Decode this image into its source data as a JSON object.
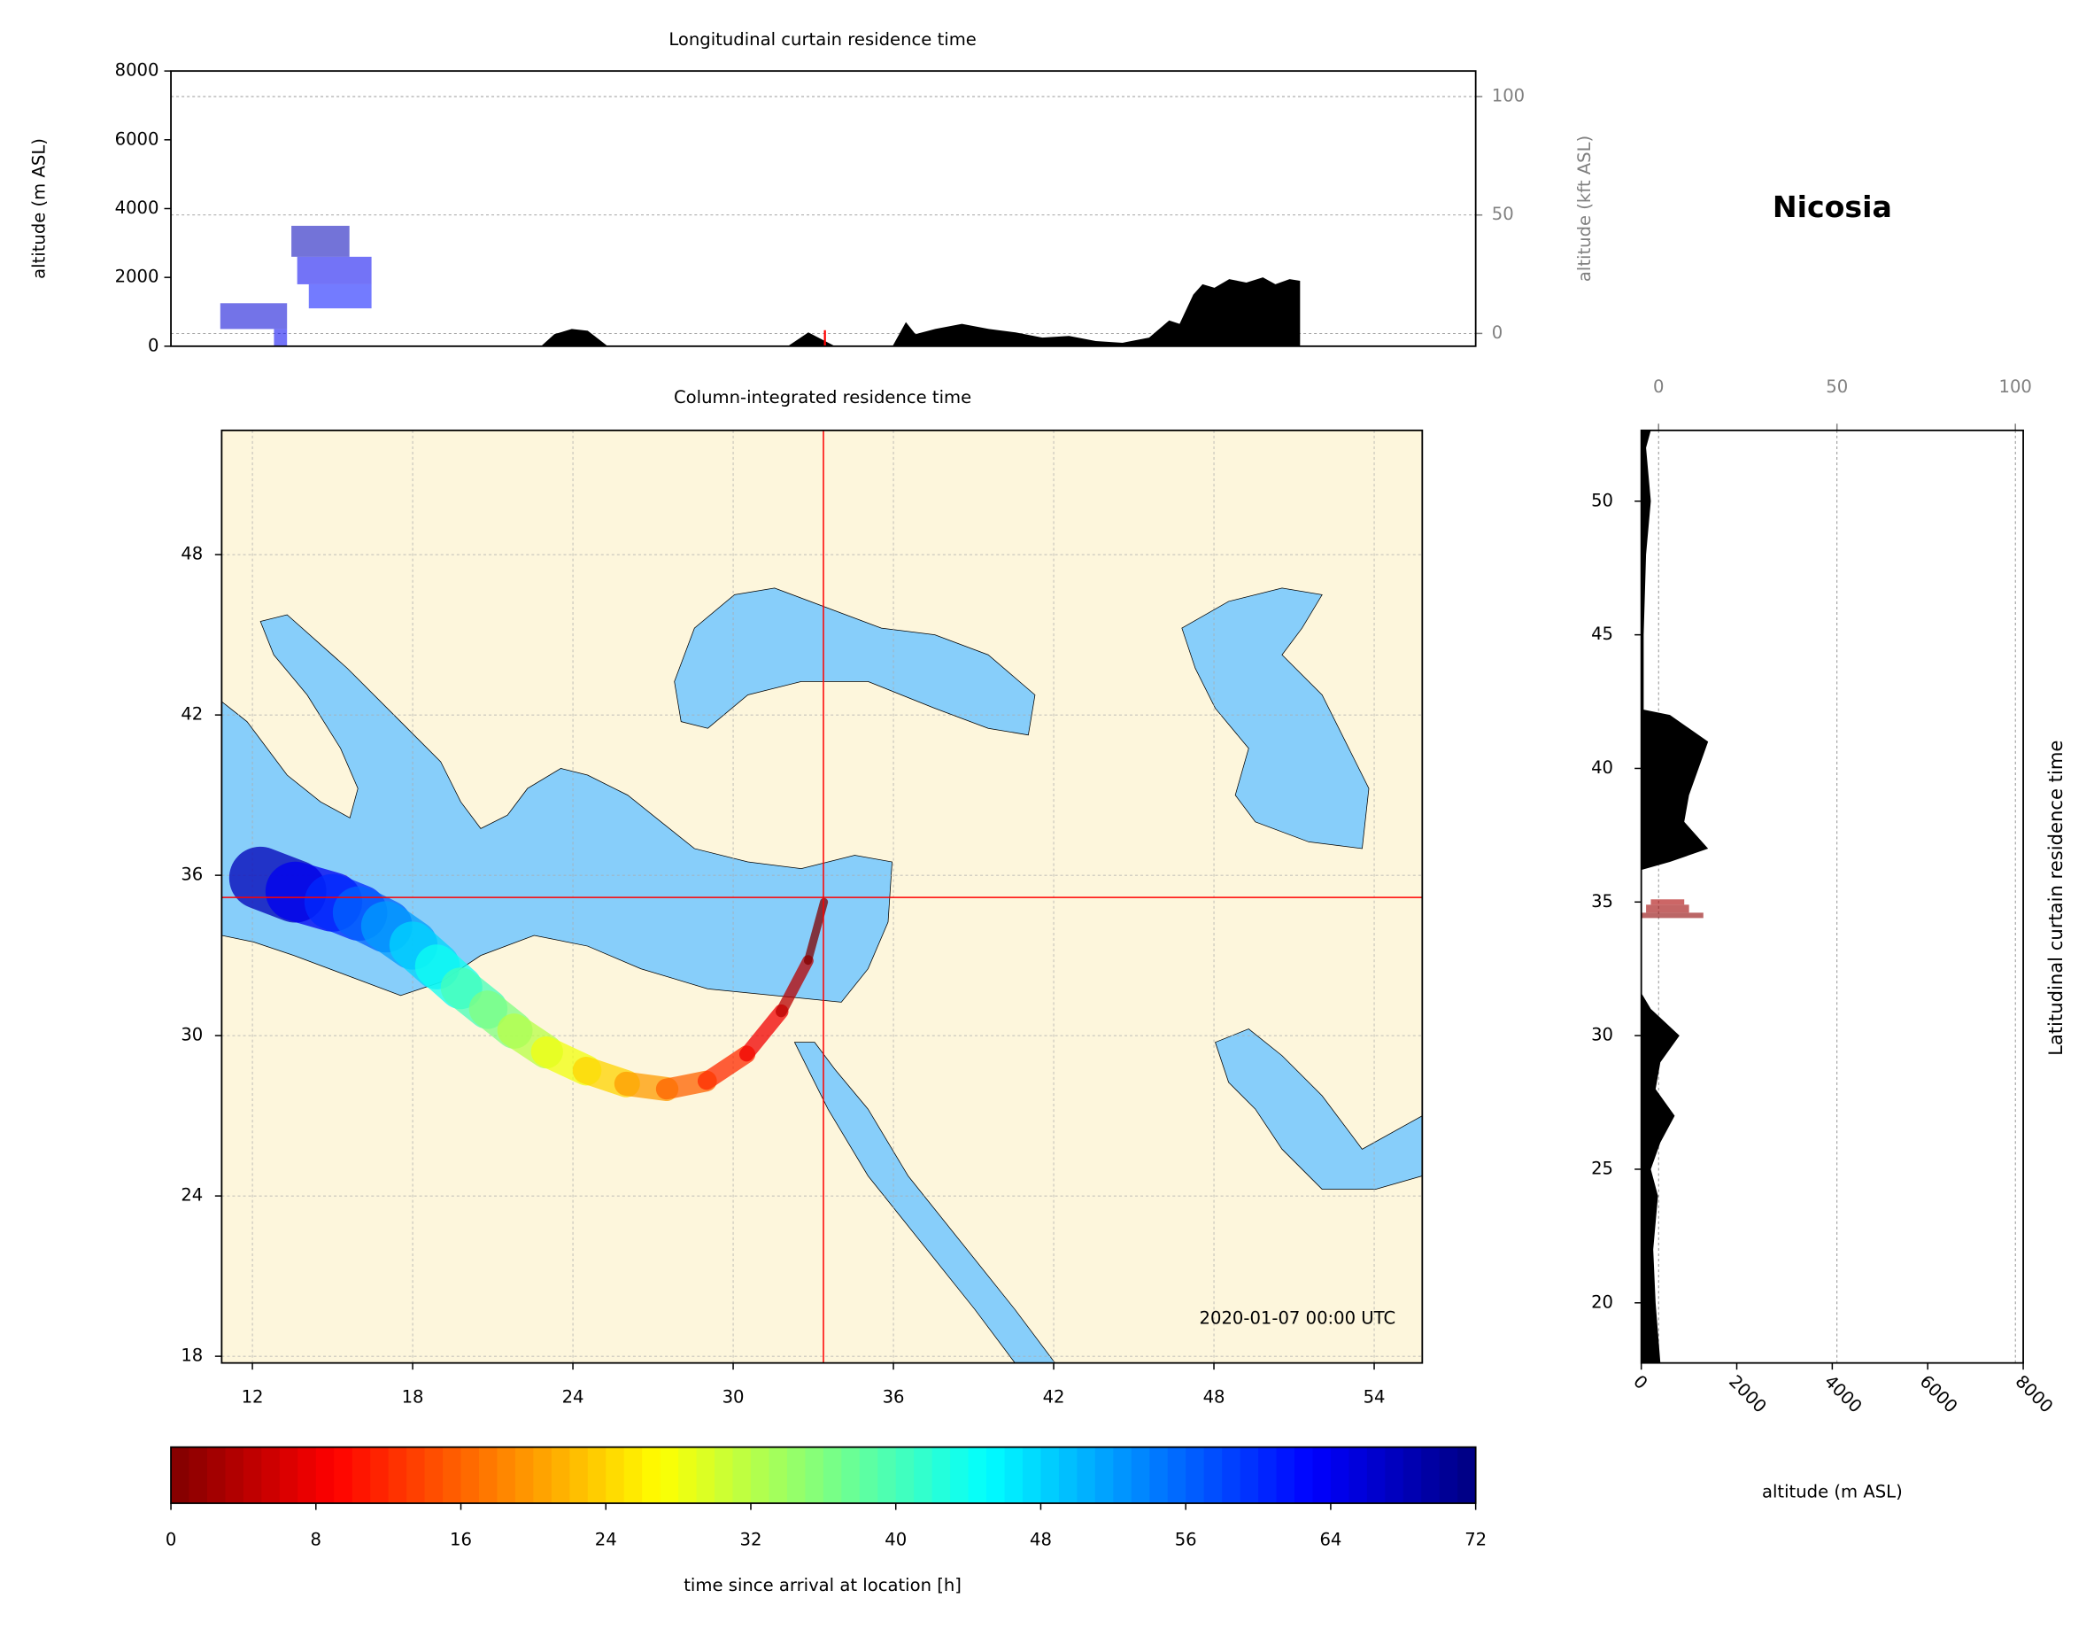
{
  "chart_data": [
    {
      "type": "area",
      "title": "Longitudinal curtain residence time",
      "ylabel": "altitude (m ASL)",
      "y2label": "altitude (kft ASL)",
      "xlim": [
        10.85,
        55.8
      ],
      "ylim": [
        0,
        8000
      ],
      "yticks": [
        0,
        2000,
        4000,
        6000,
        8000
      ],
      "y2lim": [
        -5.4,
        110.8
      ],
      "y2ticks": [
        0,
        50,
        100
      ],
      "terrain": {
        "color": "#000000",
        "x": [
          23.6,
          24.06,
          24.66,
          25.21,
          25.9,
          32.1,
          32.81,
          33.73,
          35.71,
          36.17,
          36.5,
          37.18,
          38.1,
          39.03,
          39.95,
          40.87,
          41.79,
          42.71,
          43.63,
          44.55,
          45.24,
          45.6,
          46.07,
          46.39,
          46.8,
          47.31,
          47.9,
          48.47,
          48.9,
          49.39,
          49.75
        ],
        "values": [
          0,
          350,
          500,
          450,
          0,
          0,
          400,
          0,
          0,
          700,
          350,
          500,
          650,
          500,
          400,
          250,
          300,
          150,
          100,
          250,
          750,
          650,
          1500,
          1800,
          1700,
          1950,
          1850,
          2000,
          1800,
          1950,
          1900
        ]
      },
      "cells": [
        {
          "x": [
            12.55,
            14.85
          ],
          "y": [
            500,
            1250
          ],
          "hours": 66
        },
        {
          "x": [
            14.4,
            14.85
          ],
          "y": [
            0,
            500
          ],
          "hours": 64
        },
        {
          "x": [
            15.0,
            17.0
          ],
          "y": [
            2600,
            3500
          ],
          "hours": 68
        },
        {
          "x": [
            15.2,
            17.76
          ],
          "y": [
            1800,
            2600
          ],
          "hours": 64
        },
        {
          "x": [
            15.6,
            17.76
          ],
          "y": [
            1100,
            1800
          ],
          "hours": 62
        }
      ]
    },
    {
      "type": "map",
      "title": "Column-integrated residence time",
      "annotation": "2020-01-07 00:00 UTC",
      "xlim": [
        10.85,
        55.8
      ],
      "ylim": [
        17.75,
        52.65
      ],
      "xticks": [
        12,
        18,
        24,
        30,
        36,
        42,
        48,
        54
      ],
      "yticks": [
        18,
        24,
        30,
        36,
        42,
        48
      ],
      "grid": true,
      "land_color": "#fdf6dc",
      "sea_color": "#87cefa",
      "station": {
        "lon": 33.38,
        "lat": 35.17,
        "color": "#ff0000"
      },
      "trajectory": {
        "lon": [
          33.4,
          32.8,
          31.8,
          30.5,
          29.0,
          27.5,
          26.0,
          24.5,
          23.0,
          21.8,
          20.8,
          19.8,
          18.9,
          18.0,
          17.0,
          16.0,
          15.0,
          13.6,
          12.3
        ],
        "lat": [
          35.0,
          32.8,
          30.9,
          29.3,
          28.3,
          28.0,
          28.2,
          28.7,
          29.4,
          30.2,
          31.0,
          31.8,
          32.6,
          33.4,
          34.1,
          34.6,
          35.0,
          35.4,
          35.9
        ],
        "hours": [
          0,
          4,
          8,
          12,
          16,
          20,
          24,
          28,
          32,
          36,
          40,
          44,
          48,
          52,
          56,
          60,
          64,
          68,
          72
        ]
      }
    },
    {
      "type": "colorbar",
      "xlabel": "time since arrival at location [h]",
      "colormap": "jet_r",
      "xlim": [
        0,
        72
      ],
      "xticks": [
        0,
        8,
        16,
        24,
        32,
        40,
        48,
        56,
        64,
        72
      ]
    },
    {
      "type": "profile",
      "title": "Nicosia",
      "xlabel": "altitude (m ASL)",
      "ylabel": "Latitudinal curtain residence time",
      "xlim": [
        0,
        8000
      ],
      "xticks": [
        0,
        2000,
        4000,
        6000,
        8000
      ],
      "x2lim": [
        -4.85,
        102.2
      ],
      "x2ticks": [
        0,
        50,
        100
      ],
      "ylim": [
        17.75,
        52.65
      ],
      "yticks": [
        20,
        25,
        30,
        35,
        40,
        45,
        50
      ],
      "terrain": {
        "color": "#000000",
        "lat": [
          17.75,
          20,
          22,
          24,
          25,
          26,
          27,
          28,
          29,
          30,
          31,
          31.6,
          36.2,
          36.5,
          37,
          38,
          39,
          40,
          41,
          42,
          42.2,
          45,
          48,
          50,
          52,
          52.65
        ],
        "values": [
          400,
          300,
          250,
          350,
          200,
          400,
          700,
          300,
          400,
          800,
          200,
          0,
          0,
          600,
          1400,
          900,
          1000,
          1200,
          1400,
          600,
          50,
          50,
          100,
          200,
          100,
          200
        ]
      },
      "cells": [
        {
          "lat": [
            34.4,
            34.6
          ],
          "x": [
            0,
            1300
          ],
          "hours": 1
        },
        {
          "lat": [
            34.6,
            34.9
          ],
          "x": [
            100,
            1000
          ],
          "hours": 2
        },
        {
          "lat": [
            34.9,
            35.1
          ],
          "x": [
            200,
            900
          ],
          "hours": 3
        }
      ]
    }
  ]
}
